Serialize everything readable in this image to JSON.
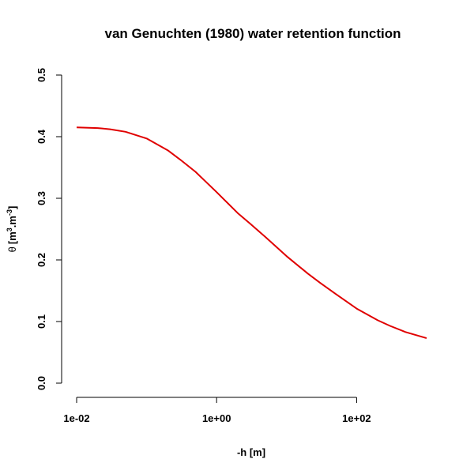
{
  "chart_data": {
    "type": "line",
    "title": "van Genuchten (1980) water retention function",
    "xlabel": "-h [m]",
    "ylabel": "θ [m³.m⁻³]",
    "ylabel_parts": {
      "symbol": "θ",
      "open": "[m",
      "sup1": "3",
      "mid": ".m",
      "sup2": "-3",
      "close": "]"
    },
    "x_scale": "log",
    "xlim": [
      0.01,
      1000
    ],
    "ylim": [
      0,
      0.5
    ],
    "x_ticks": [
      0.01,
      1,
      100
    ],
    "x_tick_labels": [
      "1e-02",
      "1e+00",
      "1e+02"
    ],
    "y_ticks": [
      0,
      0.1,
      0.2,
      0.3,
      0.4,
      0.5
    ],
    "y_tick_labels": [
      "0.0",
      "0.1",
      "0.2",
      "0.3",
      "0.4",
      "0.5"
    ],
    "grid": false,
    "series": [
      {
        "color": "#e00000",
        "x": [
          0.01,
          0.02,
          0.03,
          0.05,
          0.1,
          0.2,
          0.3,
          0.5,
          1,
          2,
          3,
          5,
          10,
          20,
          30,
          50,
          100,
          200,
          300,
          500,
          1000
        ],
        "y": [
          0.415,
          0.414,
          0.412,
          0.408,
          0.397,
          0.378,
          0.363,
          0.343,
          0.31,
          0.276,
          0.259,
          0.237,
          0.206,
          0.178,
          0.163,
          0.145,
          0.121,
          0.102,
          0.093,
          0.083,
          0.073
        ]
      }
    ]
  }
}
